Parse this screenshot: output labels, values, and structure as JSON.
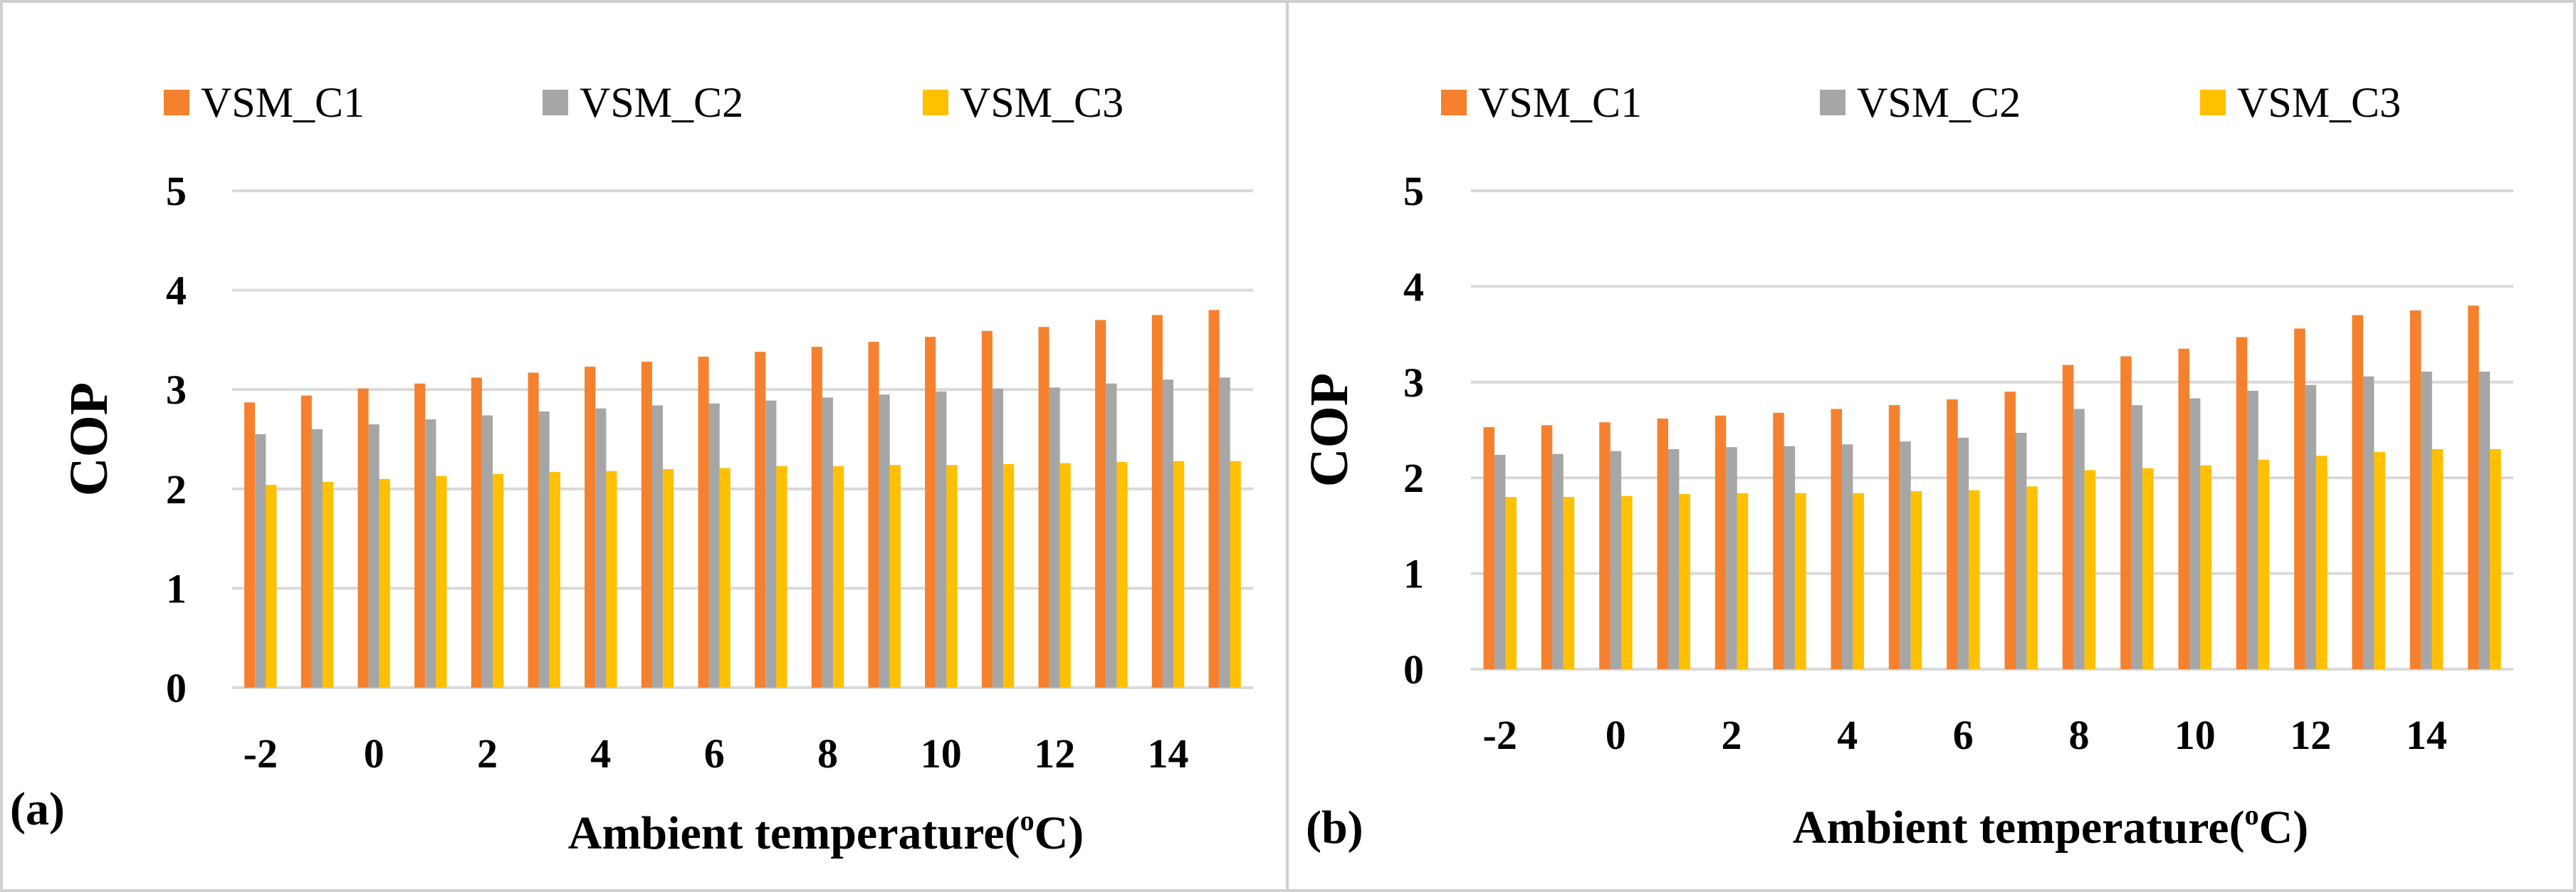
{
  "colors": {
    "VSM_C1": "#F5812E",
    "VSM_C2": "#A6A6A6",
    "VSM_C3": "#FFC000"
  },
  "chart_data": [
    {
      "type": "bar",
      "panel_label": "(a)",
      "xlabel": "Ambient temperature(",
      "xlabel_sup": "o",
      "xlabel_suffix": "C)",
      "ylabel": "COP",
      "ylim": [
        0,
        5
      ],
      "yticks": [
        "0",
        "1",
        "2",
        "3",
        "4",
        "5"
      ],
      "grid": true,
      "legend_position": "top",
      "categories": [
        -2,
        -1,
        0,
        1,
        2,
        3,
        4,
        5,
        6,
        7,
        8,
        9,
        10,
        11,
        12,
        13,
        14,
        15
      ],
      "xtick_labels": [
        "-2",
        "0",
        "2",
        "4",
        "6",
        "8",
        "10",
        "12",
        "14"
      ],
      "series": [
        {
          "name": "VSM_C1",
          "values": [
            2.87,
            2.94,
            3.01,
            3.06,
            3.12,
            3.17,
            3.23,
            3.28,
            3.33,
            3.38,
            3.43,
            3.48,
            3.53,
            3.59,
            3.63,
            3.7,
            3.75,
            3.8
          ]
        },
        {
          "name": "VSM_C2",
          "values": [
            2.55,
            2.6,
            2.65,
            2.7,
            2.74,
            2.78,
            2.81,
            2.84,
            2.86,
            2.89,
            2.92,
            2.95,
            2.98,
            3.01,
            3.02,
            3.06,
            3.1,
            3.12
          ]
        },
        {
          "name": "VSM_C3",
          "values": [
            2.04,
            2.07,
            2.1,
            2.13,
            2.15,
            2.17,
            2.18,
            2.2,
            2.21,
            2.23,
            2.23,
            2.24,
            2.24,
            2.25,
            2.26,
            2.27,
            2.28,
            2.28
          ]
        }
      ]
    },
    {
      "type": "bar",
      "panel_label": "(b)",
      "xlabel": "Ambient temperature(",
      "xlabel_sup": "o",
      "xlabel_suffix": "C)",
      "ylabel": "COP",
      "ylim": [
        0,
        5
      ],
      "yticks": [
        "0",
        "1",
        "2",
        "3",
        "4",
        "5"
      ],
      "grid": true,
      "legend_position": "top",
      "categories": [
        -2,
        -1,
        0,
        1,
        2,
        3,
        4,
        5,
        6,
        7,
        8,
        9,
        10,
        11,
        12,
        13,
        14,
        15
      ],
      "xtick_labels": [
        "-2",
        "0",
        "2",
        "4",
        "6",
        "8",
        "10",
        "12",
        "14"
      ],
      "series": [
        {
          "name": "VSM_C1",
          "values": [
            2.53,
            2.55,
            2.58,
            2.62,
            2.65,
            2.68,
            2.72,
            2.76,
            2.82,
            2.9,
            3.18,
            3.27,
            3.35,
            3.47,
            3.56,
            3.7,
            3.75,
            3.8
          ]
        },
        {
          "name": "VSM_C2",
          "values": [
            2.24,
            2.25,
            2.28,
            2.3,
            2.32,
            2.33,
            2.35,
            2.38,
            2.42,
            2.47,
            2.72,
            2.76,
            2.83,
            2.91,
            2.97,
            3.06,
            3.11,
            3.11
          ]
        },
        {
          "name": "VSM_C3",
          "values": [
            1.8,
            1.8,
            1.81,
            1.83,
            1.84,
            1.84,
            1.84,
            1.86,
            1.87,
            1.91,
            2.08,
            2.1,
            2.13,
            2.19,
            2.23,
            2.27,
            2.3,
            2.3
          ]
        }
      ]
    }
  ]
}
